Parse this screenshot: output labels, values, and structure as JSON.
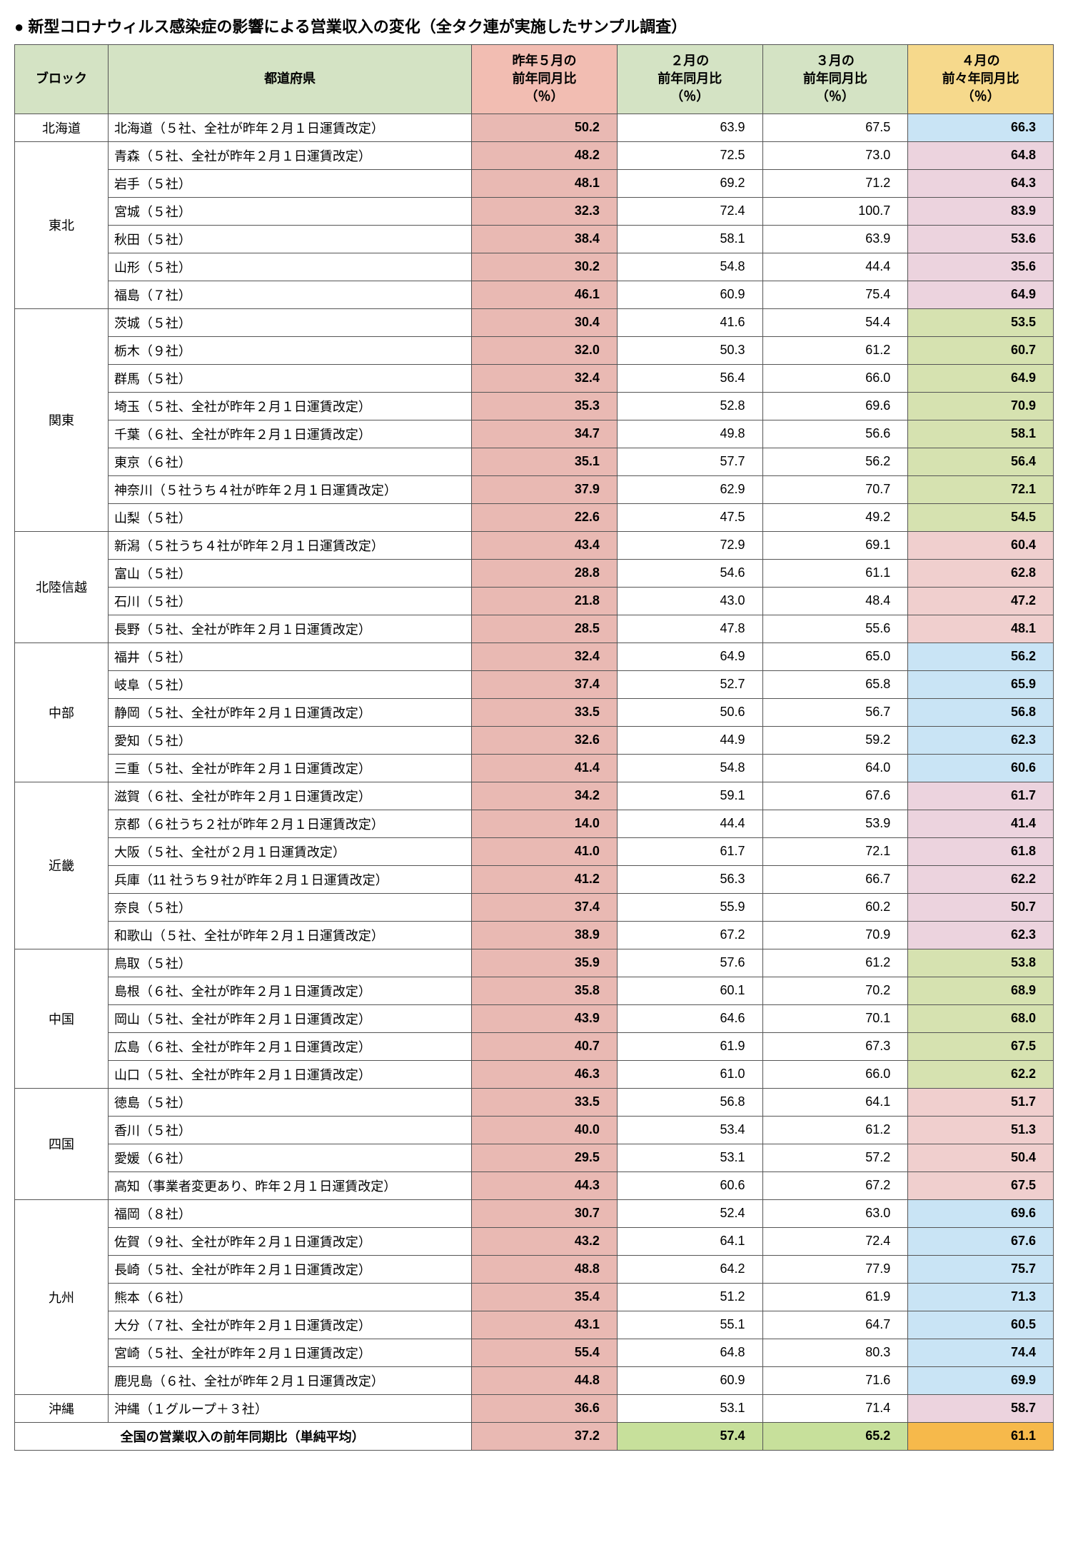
{
  "title": "● 新型コロナウィルス感染症の影響による営業収入の変化（全タク連が実施したサンプル調査）",
  "headers": {
    "block": "ブロック",
    "pref": "都道府県",
    "c1": "昨年５月の\n前年同月比\n（％）",
    "c2": "２月の\n前年同月比\n（％）",
    "c3": "３月の\n前年同月比\n（％）",
    "c4": "４月の\n前々年同月比\n（％）"
  },
  "header_colors": {
    "block": "#d4e3c4",
    "pref": "#d4e3c4",
    "c1": "#f2bdb2",
    "c2": "#d4e3c4",
    "c3": "#d4e3c4",
    "c4": "#f6d98c"
  },
  "col1_bg": "#e9b9b3",
  "col1_bold": true,
  "total_label": "全国の営業収入の前年同期比（単純平均）",
  "total_values": [
    "37.2",
    "57.4",
    "65.2",
    "61.1"
  ],
  "total_bg": [
    "#e9b9b3",
    "#c7e09b",
    "#c7e09b",
    "#f6b94b"
  ],
  "blocks": [
    {
      "name": "北海道",
      "col4_bg": "#c9e4f5",
      "rows": [
        {
          "pref": "北海道（５社、全社が昨年２月１日運賃改定）",
          "v": [
            "50.2",
            "63.9",
            "67.5",
            "66.3"
          ]
        }
      ]
    },
    {
      "name": "東北",
      "col4_bg": "#ecd3de",
      "rows": [
        {
          "pref": "青森（５社、全社が昨年２月１日運賃改定）",
          "v": [
            "48.2",
            "72.5",
            "73.0",
            "64.8"
          ]
        },
        {
          "pref": "岩手（５社）",
          "v": [
            "48.1",
            "69.2",
            "71.2",
            "64.3"
          ]
        },
        {
          "pref": "宮城（５社）",
          "v": [
            "32.3",
            "72.4",
            "100.7",
            "83.9"
          ]
        },
        {
          "pref": "秋田（５社）",
          "v": [
            "38.4",
            "58.1",
            "63.9",
            "53.6"
          ]
        },
        {
          "pref": "山形（５社）",
          "v": [
            "30.2",
            "54.8",
            "44.4",
            "35.6"
          ]
        },
        {
          "pref": "福島（７社）",
          "v": [
            "46.1",
            "60.9",
            "75.4",
            "64.9"
          ]
        }
      ]
    },
    {
      "name": "関東",
      "col4_bg": "#d6e2b0",
      "rows": [
        {
          "pref": "茨城（５社）",
          "v": [
            "30.4",
            "41.6",
            "54.4",
            "53.5"
          ]
        },
        {
          "pref": "栃木（９社）",
          "v": [
            "32.0",
            "50.3",
            "61.2",
            "60.7"
          ]
        },
        {
          "pref": "群馬（５社）",
          "v": [
            "32.4",
            "56.4",
            "66.0",
            "64.9"
          ]
        },
        {
          "pref": "埼玉（５社、全社が昨年２月１日運賃改定）",
          "v": [
            "35.3",
            "52.8",
            "69.6",
            "70.9"
          ]
        },
        {
          "pref": "千葉（６社、全社が昨年２月１日運賃改定）",
          "v": [
            "34.7",
            "49.8",
            "56.6",
            "58.1"
          ]
        },
        {
          "pref": "東京（６社）",
          "v": [
            "35.1",
            "57.7",
            "56.2",
            "56.4"
          ]
        },
        {
          "pref": "神奈川（５社うち４社が昨年２月１日運賃改定）",
          "v": [
            "37.9",
            "62.9",
            "70.7",
            "72.1"
          ]
        },
        {
          "pref": "山梨（５社）",
          "v": [
            "22.6",
            "47.5",
            "49.2",
            "54.5"
          ]
        }
      ]
    },
    {
      "name": "北陸信越",
      "col4_bg": "#f0cfce",
      "rows": [
        {
          "pref": "新潟（５社うち４社が昨年２月１日運賃改定）",
          "v": [
            "43.4",
            "72.9",
            "69.1",
            "60.4"
          ]
        },
        {
          "pref": "富山（５社）",
          "v": [
            "28.8",
            "54.6",
            "61.1",
            "62.8"
          ]
        },
        {
          "pref": "石川（５社）",
          "v": [
            "21.8",
            "43.0",
            "48.4",
            "47.2"
          ]
        },
        {
          "pref": "長野（５社、全社が昨年２月１日運賃改定）",
          "v": [
            "28.5",
            "47.8",
            "55.6",
            "48.1"
          ]
        }
      ]
    },
    {
      "name": "中部",
      "col4_bg": "#c9e4f5",
      "rows": [
        {
          "pref": "福井（５社）",
          "v": [
            "32.4",
            "64.9",
            "65.0",
            "56.2"
          ]
        },
        {
          "pref": "岐阜（５社）",
          "v": [
            "37.4",
            "52.7",
            "65.8",
            "65.9"
          ]
        },
        {
          "pref": "静岡（５社、全社が昨年２月１日運賃改定）",
          "v": [
            "33.5",
            "50.6",
            "56.7",
            "56.8"
          ]
        },
        {
          "pref": "愛知（５社）",
          "v": [
            "32.6",
            "44.9",
            "59.2",
            "62.3"
          ]
        },
        {
          "pref": "三重（５社、全社が昨年２月１日運賃改定）",
          "v": [
            "41.4",
            "54.8",
            "64.0",
            "60.6"
          ]
        }
      ]
    },
    {
      "name": "近畿",
      "col4_bg": "#ecd3de",
      "rows": [
        {
          "pref": "滋賀（６社、全社が昨年２月１日運賃改定）",
          "v": [
            "34.2",
            "59.1",
            "67.6",
            "61.7"
          ]
        },
        {
          "pref": "京都（６社うち２社が昨年２月１日運賃改定）",
          "v": [
            "14.0",
            "44.4",
            "53.9",
            "41.4"
          ]
        },
        {
          "pref": "大阪（５社、全社が２月１日運賃改定）",
          "v": [
            "41.0",
            "61.7",
            "72.1",
            "61.8"
          ]
        },
        {
          "pref": "兵庫（11 社うち９社が昨年２月１日運賃改定）",
          "v": [
            "41.2",
            "56.3",
            "66.7",
            "62.2"
          ]
        },
        {
          "pref": "奈良（５社）",
          "v": [
            "37.4",
            "55.9",
            "60.2",
            "50.7"
          ]
        },
        {
          "pref": "和歌山（５社、全社が昨年２月１日運賃改定）",
          "v": [
            "38.9",
            "67.2",
            "70.9",
            "62.3"
          ]
        }
      ]
    },
    {
      "name": "中国",
      "col4_bg": "#d6e2b0",
      "rows": [
        {
          "pref": "鳥取（５社）",
          "v": [
            "35.9",
            "57.6",
            "61.2",
            "53.8"
          ]
        },
        {
          "pref": "島根（６社、全社が昨年２月１日運賃改定）",
          "v": [
            "35.8",
            "60.1",
            "70.2",
            "68.9"
          ]
        },
        {
          "pref": "岡山（５社、全社が昨年２月１日運賃改定）",
          "v": [
            "43.9",
            "64.6",
            "70.1",
            "68.0"
          ]
        },
        {
          "pref": "広島（６社、全社が昨年２月１日運賃改定）",
          "v": [
            "40.7",
            "61.9",
            "67.3",
            "67.5"
          ]
        },
        {
          "pref": "山口（５社、全社が昨年２月１日運賃改定）",
          "v": [
            "46.3",
            "61.0",
            "66.0",
            "62.2"
          ]
        }
      ]
    },
    {
      "name": "四国",
      "col4_bg": "#f0cfce",
      "rows": [
        {
          "pref": "徳島（５社）",
          "v": [
            "33.5",
            "56.8",
            "64.1",
            "51.7"
          ]
        },
        {
          "pref": "香川（５社）",
          "v": [
            "40.0",
            "53.4",
            "61.2",
            "51.3"
          ]
        },
        {
          "pref": "愛媛（６社）",
          "v": [
            "29.5",
            "53.1",
            "57.2",
            "50.4"
          ]
        },
        {
          "pref": "高知（事業者変更あり、昨年２月１日運賃改定）",
          "v": [
            "44.3",
            "60.6",
            "67.2",
            "67.5"
          ]
        }
      ]
    },
    {
      "name": "九州",
      "col4_bg": "#c9e4f5",
      "rows": [
        {
          "pref": "福岡（８社）",
          "v": [
            "30.7",
            "52.4",
            "63.0",
            "69.6"
          ]
        },
        {
          "pref": "佐賀（９社、全社が昨年２月１日運賃改定）",
          "v": [
            "43.2",
            "64.1",
            "72.4",
            "67.6"
          ]
        },
        {
          "pref": "長崎（５社、全社が昨年２月１日運賃改定）",
          "v": [
            "48.8",
            "64.2",
            "77.9",
            "75.7"
          ]
        },
        {
          "pref": "熊本（６社）",
          "v": [
            "35.4",
            "51.2",
            "61.9",
            "71.3"
          ]
        },
        {
          "pref": "大分（７社、全社が昨年２月１日運賃改定）",
          "v": [
            "43.1",
            "55.1",
            "64.7",
            "60.5"
          ]
        },
        {
          "pref": "宮崎（５社、全社が昨年２月１日運賃改定）",
          "v": [
            "55.4",
            "64.8",
            "80.3",
            "74.4"
          ]
        },
        {
          "pref": "鹿児島（６社、全社が昨年２月１日運賃改定）",
          "v": [
            "44.8",
            "60.9",
            "71.6",
            "69.9"
          ]
        }
      ]
    },
    {
      "name": "沖縄",
      "col4_bg": "#ecd3de",
      "rows": [
        {
          "pref": "沖縄（１グループ＋３社）",
          "v": [
            "36.6",
            "53.1",
            "71.4",
            "58.7"
          ]
        }
      ]
    }
  ]
}
